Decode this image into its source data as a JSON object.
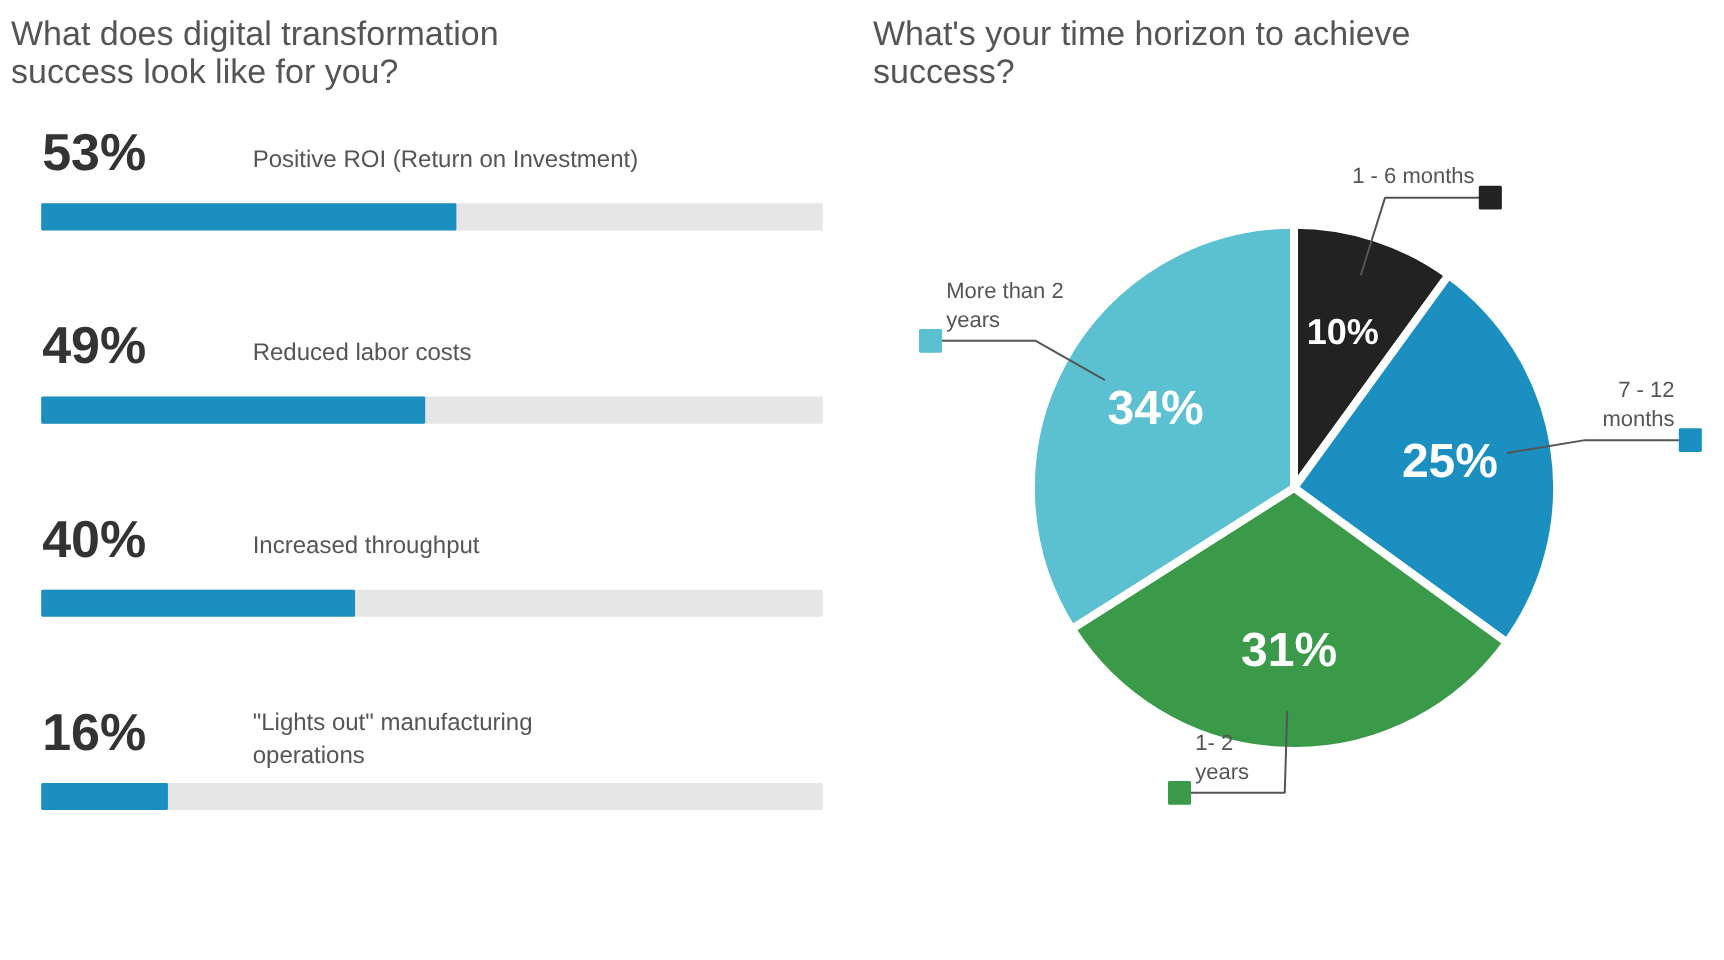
{
  "chart_data": [
    {
      "type": "bar",
      "orientation": "horizontal",
      "title": "What does digital transformation\nsuccess look like for you?",
      "categories": [
        "Positive ROI (Return on Investment)",
        "Reduced labor costs",
        "Increased throughput",
        "\"Lights out\" manufacturing\noperations"
      ],
      "values": [
        53,
        49,
        40,
        16
      ],
      "value_labels": [
        "53%",
        "49%",
        "40%",
        "16%"
      ],
      "color": "#1a8fc0",
      "xlim": [
        0,
        100
      ],
      "tick_labels": false,
      "grid": false
    },
    {
      "type": "pie",
      "title": "What's your time horizon to achieve\nsuccess?",
      "categories": [
        "1 - 6 months",
        "7 - 12\nmonths",
        "1- 2\nyears",
        "More than 2\nyears"
      ],
      "values": [
        10,
        25,
        31,
        34
      ],
      "colors": [
        "#222222",
        "#1a8fc0",
        "#3a9a4a",
        "#5bc0d0"
      ],
      "value_labels": [
        "10%",
        "25%",
        "31%",
        "34%"
      ]
    }
  ]
}
